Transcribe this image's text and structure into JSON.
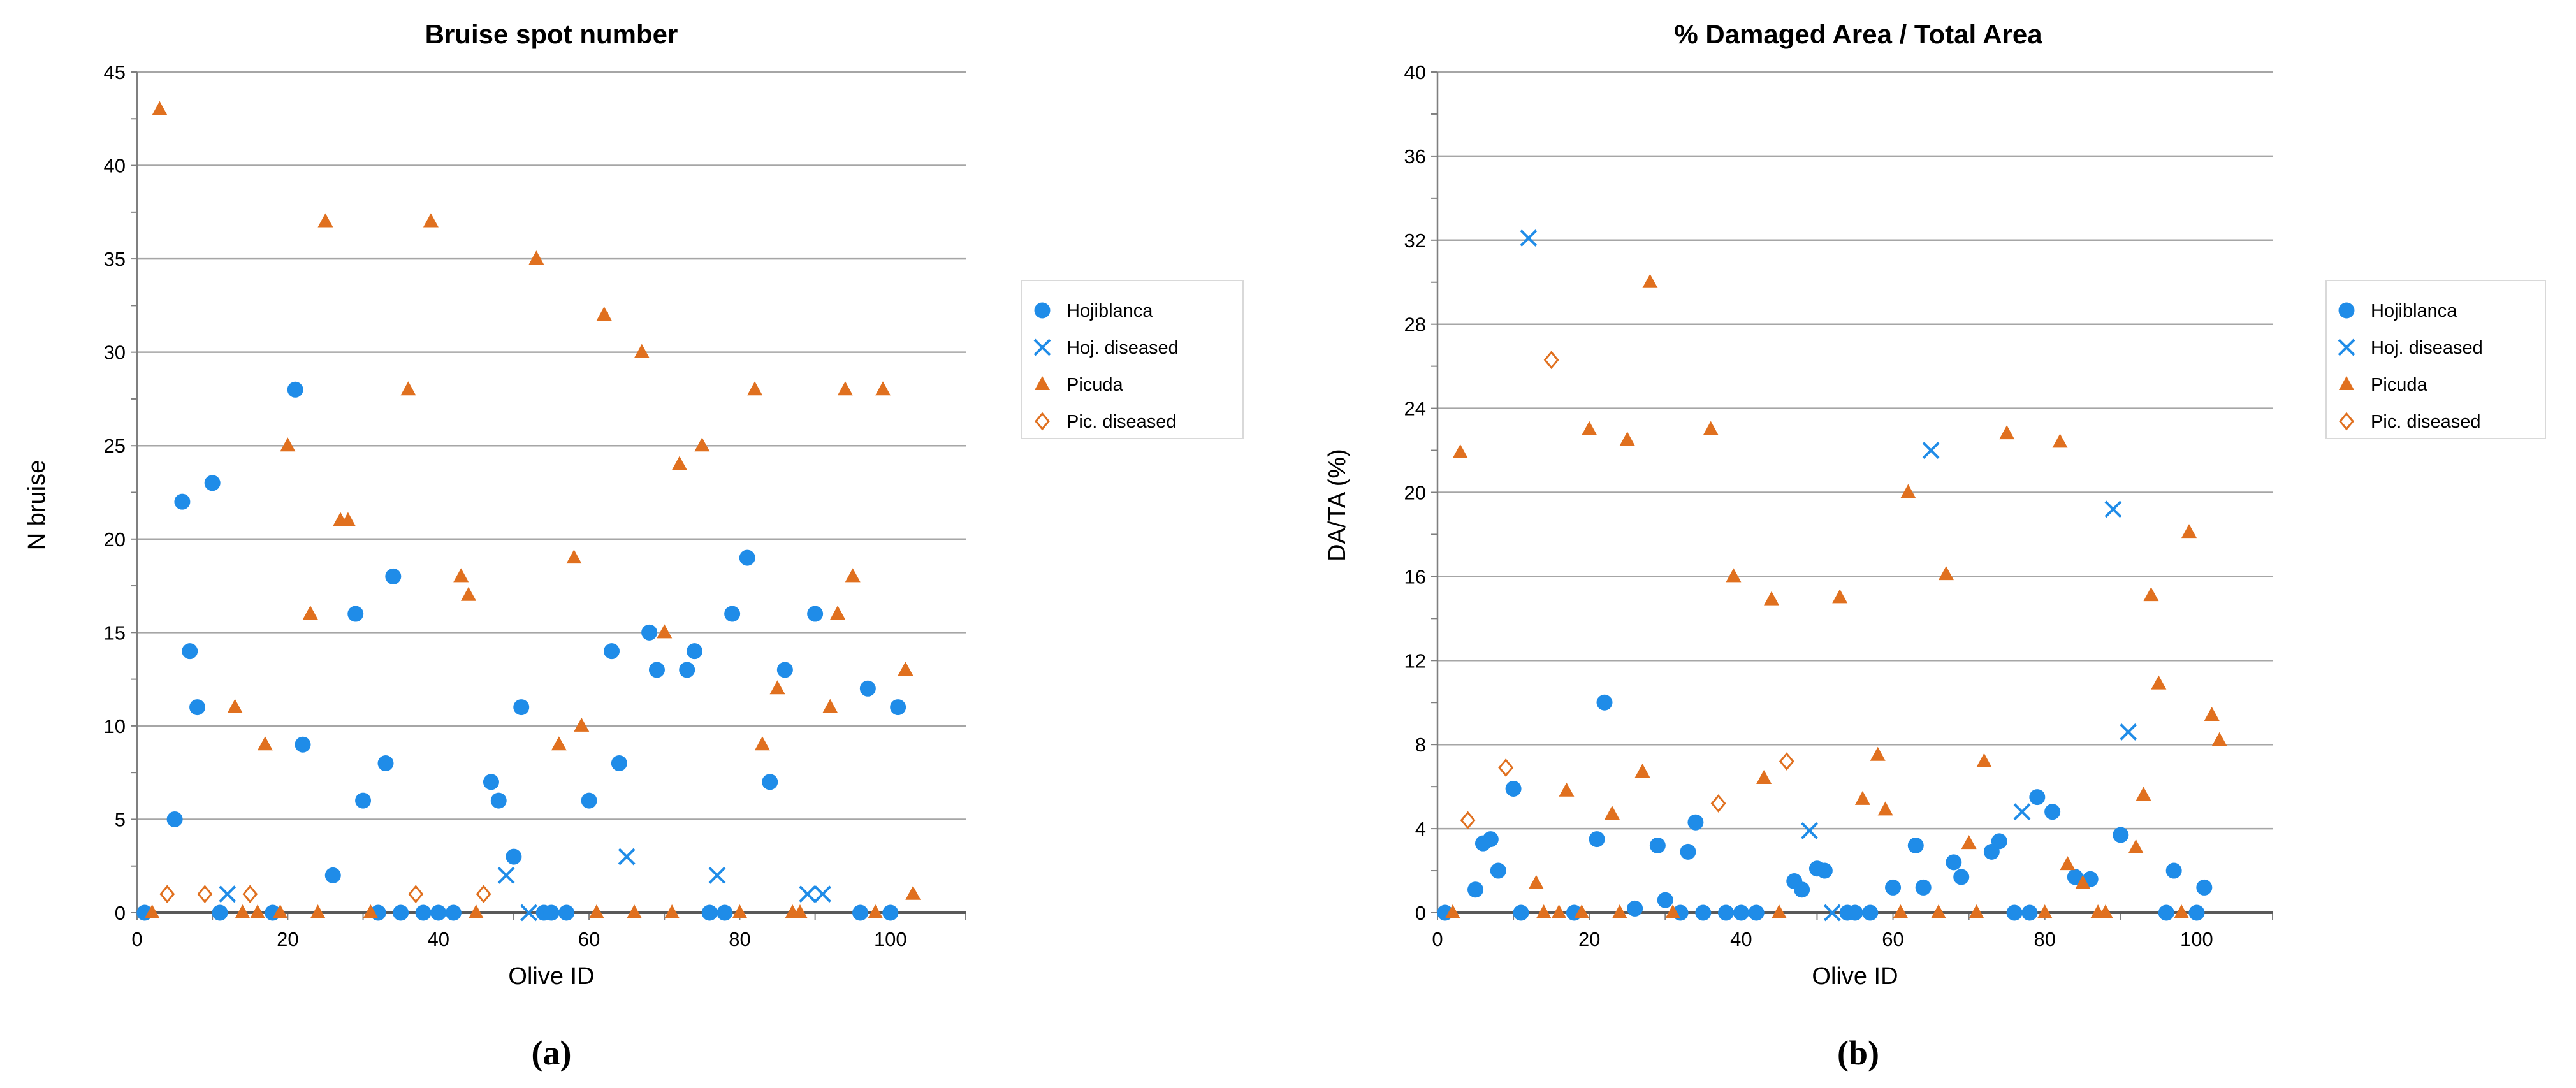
{
  "chart_data": [
    {
      "type": "scatter",
      "title": "Bruise spot number",
      "xlabel": "Olive ID",
      "ylabel": "N bruise",
      "caption": "(a)",
      "xlim": [
        0,
        110
      ],
      "ylim": [
        0,
        45
      ],
      "xticks": [
        "0",
        "20",
        "40",
        "60",
        "80",
        "100"
      ],
      "yticks": [
        "0",
        "5",
        "10",
        "15",
        "20",
        "25",
        "30",
        "35",
        "40",
        "45"
      ],
      "grid": "horizontal",
      "legend_position": "right",
      "series": [
        {
          "name": "Hojiblanca",
          "marker": "circle",
          "color": "#1f8ce8",
          "points": [
            [
              1,
              0
            ],
            [
              5,
              5
            ],
            [
              6,
              22
            ],
            [
              7,
              14
            ],
            [
              8,
              11
            ],
            [
              10,
              23
            ],
            [
              11,
              0
            ],
            [
              18,
              0
            ],
            [
              21,
              28
            ],
            [
              22,
              9
            ],
            [
              26,
              2
            ],
            [
              29,
              16
            ],
            [
              30,
              6
            ],
            [
              32,
              0
            ],
            [
              33,
              8
            ],
            [
              34,
              18
            ],
            [
              35,
              0
            ],
            [
              38,
              0
            ],
            [
              40,
              0
            ],
            [
              42,
              0
            ],
            [
              47,
              7
            ],
            [
              48,
              6
            ],
            [
              50,
              3
            ],
            [
              51,
              11
            ],
            [
              54,
              0
            ],
            [
              55,
              0
            ],
            [
              57,
              0
            ],
            [
              60,
              6
            ],
            [
              63,
              14
            ],
            [
              64,
              8
            ],
            [
              68,
              15
            ],
            [
              69,
              13
            ],
            [
              73,
              13
            ],
            [
              74,
              14
            ],
            [
              76,
              0
            ],
            [
              78,
              0
            ],
            [
              79,
              16
            ],
            [
              81,
              19
            ],
            [
              84,
              7
            ],
            [
              86,
              13
            ],
            [
              90,
              16
            ],
            [
              96,
              0
            ],
            [
              97,
              12
            ],
            [
              100,
              0
            ],
            [
              101,
              11
            ]
          ]
        },
        {
          "name": "Hoj. diseased",
          "marker": "x",
          "color": "#1f8ce8",
          "points": [
            [
              12,
              1
            ],
            [
              49,
              2
            ],
            [
              52,
              0
            ],
            [
              65,
              3
            ],
            [
              77,
              2
            ],
            [
              89,
              1
            ],
            [
              91,
              1
            ]
          ]
        },
        {
          "name": "Picuda",
          "marker": "triangle",
          "color": "#e0701f",
          "points": [
            [
              2,
              0
            ],
            [
              3,
              43
            ],
            [
              13,
              11
            ],
            [
              14,
              0
            ],
            [
              16,
              0
            ],
            [
              17,
              9
            ],
            [
              19,
              0
            ],
            [
              20,
              25
            ],
            [
              23,
              16
            ],
            [
              24,
              0
            ],
            [
              25,
              37
            ],
            [
              27,
              21
            ],
            [
              28,
              21
            ],
            [
              31,
              0
            ],
            [
              36,
              28
            ],
            [
              39,
              37
            ],
            [
              43,
              18
            ],
            [
              44,
              17
            ],
            [
              45,
              0
            ],
            [
              53,
              35
            ],
            [
              56,
              9
            ],
            [
              58,
              19
            ],
            [
              59,
              10
            ],
            [
              61,
              0
            ],
            [
              62,
              32
            ],
            [
              66,
              0
            ],
            [
              67,
              30
            ],
            [
              70,
              15
            ],
            [
              71,
              0
            ],
            [
              72,
              24
            ],
            [
              75,
              25
            ],
            [
              80,
              0
            ],
            [
              82,
              28
            ],
            [
              83,
              9
            ],
            [
              85,
              12
            ],
            [
              87,
              0
            ],
            [
              88,
              0
            ],
            [
              92,
              11
            ],
            [
              93,
              16
            ],
            [
              94,
              28
            ],
            [
              95,
              18
            ],
            [
              98,
              0
            ],
            [
              99,
              28
            ],
            [
              102,
              13
            ],
            [
              103,
              1
            ]
          ]
        },
        {
          "name": "Pic. diseased",
          "marker": "diamond-open",
          "color": "#e0701f",
          "points": [
            [
              4,
              1
            ],
            [
              9,
              1
            ],
            [
              15,
              1
            ],
            [
              37,
              1
            ],
            [
              46,
              1
            ]
          ]
        }
      ]
    },
    {
      "type": "scatter",
      "title": "% Damaged Area / Total Area",
      "xlabel": "Olive ID",
      "ylabel": "DA/TA (%)",
      "caption": "(b)",
      "xlim": [
        0,
        110
      ],
      "ylim": [
        0,
        40
      ],
      "xticks": [
        "0",
        "20",
        "40",
        "60",
        "80",
        "100"
      ],
      "yticks": [
        "0",
        "4",
        "8",
        "12",
        "16",
        "20",
        "24",
        "28",
        "32",
        "36",
        "40"
      ],
      "grid": "horizontal",
      "legend_position": "right",
      "series": [
        {
          "name": "Hojiblanca",
          "marker": "circle",
          "color": "#1f8ce8",
          "points": [
            [
              1,
              0
            ],
            [
              5,
              1.1
            ],
            [
              6,
              3.3
            ],
            [
              7,
              3.5
            ],
            [
              8,
              2
            ],
            [
              10,
              5.9
            ],
            [
              11,
              0
            ],
            [
              18,
              0
            ],
            [
              21,
              3.5
            ],
            [
              22,
              10
            ],
            [
              26,
              0.2
            ],
            [
              29,
              3.2
            ],
            [
              30,
              0.6
            ],
            [
              32,
              0
            ],
            [
              33,
              2.9
            ],
            [
              34,
              4.3
            ],
            [
              35,
              0
            ],
            [
              38,
              0
            ],
            [
              40,
              0
            ],
            [
              42,
              0
            ],
            [
              47,
              1.5
            ],
            [
              48,
              1.1
            ],
            [
              50,
              2.1
            ],
            [
              51,
              2
            ],
            [
              54,
              0
            ],
            [
              55,
              0
            ],
            [
              57,
              0
            ],
            [
              60,
              1.2
            ],
            [
              63,
              3.2
            ],
            [
              64,
              1.2
            ],
            [
              68,
              2.4
            ],
            [
              69,
              1.7
            ],
            [
              73,
              2.9
            ],
            [
              74,
              3.4
            ],
            [
              76,
              0
            ],
            [
              78,
              0
            ],
            [
              79,
              5.5
            ],
            [
              81,
              4.8
            ],
            [
              84,
              1.7
            ],
            [
              86,
              1.6
            ],
            [
              90,
              3.7
            ],
            [
              96,
              0
            ],
            [
              97,
              2
            ],
            [
              100,
              0
            ],
            [
              101,
              1.2
            ]
          ]
        },
        {
          "name": "Hoj. diseased",
          "marker": "x",
          "color": "#1f8ce8",
          "points": [
            [
              12,
              32.1
            ],
            [
              49,
              3.9
            ],
            [
              52,
              0
            ],
            [
              65,
              22
            ],
            [
              77,
              4.8
            ],
            [
              89,
              19.2
            ],
            [
              91,
              8.6
            ]
          ]
        },
        {
          "name": "Picuda",
          "marker": "triangle",
          "color": "#e0701f",
          "points": [
            [
              2,
              0
            ],
            [
              3,
              21.9
            ],
            [
              13,
              1.4
            ],
            [
              14,
              0
            ],
            [
              16,
              0
            ],
            [
              17,
              5.8
            ],
            [
              19,
              0
            ],
            [
              20,
              23
            ],
            [
              23,
              4.7
            ],
            [
              24,
              0
            ],
            [
              25,
              22.5
            ],
            [
              27,
              6.7
            ],
            [
              28,
              30
            ],
            [
              31,
              0
            ],
            [
              36,
              23
            ],
            [
              39,
              16
            ],
            [
              43,
              6.4
            ],
            [
              44,
              14.9
            ],
            [
              45,
              0
            ],
            [
              53,
              15
            ],
            [
              56,
              5.4
            ],
            [
              58,
              7.5
            ],
            [
              59,
              4.9
            ],
            [
              61,
              0
            ],
            [
              62,
              20
            ],
            [
              66,
              0
            ],
            [
              67,
              16.1
            ],
            [
              70,
              3.3
            ],
            [
              71,
              0
            ],
            [
              72,
              7.2
            ],
            [
              75,
              22.8
            ],
            [
              80,
              0
            ],
            [
              82,
              22.4
            ],
            [
              83,
              2.3
            ],
            [
              85,
              1.4
            ],
            [
              87,
              0
            ],
            [
              88,
              0
            ],
            [
              92,
              3.1
            ],
            [
              93,
              5.6
            ],
            [
              94,
              15.1
            ],
            [
              95,
              10.9
            ],
            [
              98,
              0
            ],
            [
              99,
              18.1
            ],
            [
              102,
              9.4
            ],
            [
              103,
              8.2
            ]
          ]
        },
        {
          "name": "Pic. diseased",
          "marker": "diamond-open",
          "color": "#e0701f",
          "points": [
            [
              4,
              4.4
            ],
            [
              9,
              6.9
            ],
            [
              15,
              26.3
            ],
            [
              37,
              5.2
            ],
            [
              46,
              7.2
            ]
          ]
        }
      ]
    }
  ]
}
